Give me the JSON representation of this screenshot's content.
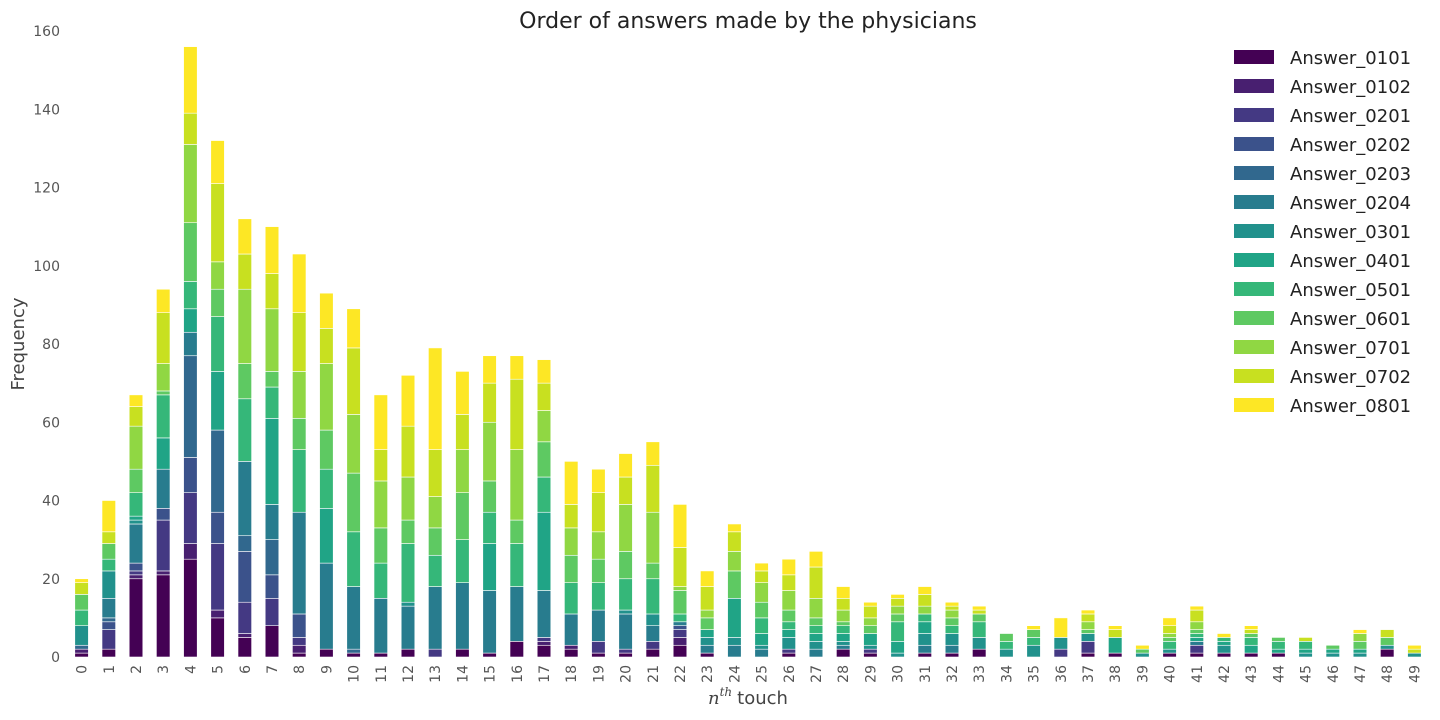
{
  "chart_data": {
    "type": "bar",
    "stacked": true,
    "title": "Order of answers made by the physicians",
    "xlabel": "touch",
    "xlabel_prefix": "n",
    "xlabel_superscript": "th",
    "ylabel": "Frequency",
    "ylim": [
      0,
      160
    ],
    "yticks": [
      0,
      20,
      40,
      60,
      80,
      100,
      120,
      140,
      160
    ],
    "grid": false,
    "legend_position": "top-right",
    "categories": [
      "0",
      "1",
      "2",
      "3",
      "4",
      "5",
      "6",
      "7",
      "8",
      "9",
      "10",
      "11",
      "12",
      "13",
      "14",
      "15",
      "16",
      "17",
      "18",
      "19",
      "20",
      "21",
      "22",
      "23",
      "24",
      "25",
      "26",
      "27",
      "28",
      "29",
      "30",
      "31",
      "32",
      "33",
      "34",
      "35",
      "36",
      "37",
      "38",
      "39",
      "40",
      "41",
      "42",
      "43",
      "44",
      "45",
      "46",
      "47",
      "48",
      "49"
    ],
    "colors": [
      "#440154",
      "#481f70",
      "#443983",
      "#3b528b",
      "#31688e",
      "#287c8e",
      "#21918c",
      "#20a486",
      "#35b779",
      "#5ec962",
      "#90d743",
      "#c8e020",
      "#fde725"
    ],
    "series": [
      {
        "name": "Answer_0101",
        "values": [
          1,
          2,
          20,
          21,
          25,
          10,
          5,
          8,
          1,
          2,
          1,
          1,
          2,
          0,
          2,
          1,
          4,
          3,
          2,
          1,
          1,
          2,
          3,
          1,
          0,
          0,
          1,
          0,
          2,
          1,
          0,
          1,
          1,
          2,
          0,
          0,
          0,
          1,
          1,
          0,
          1,
          1,
          1,
          1,
          1,
          0,
          0,
          0,
          2,
          0
        ]
      },
      {
        "name": "Answer_0102",
        "values": [
          1,
          0,
          1,
          1,
          4,
          2,
          1,
          0,
          2,
          0,
          0,
          0,
          0,
          0,
          0,
          0,
          0,
          1,
          1,
          0,
          0,
          0,
          2,
          0,
          0,
          0,
          0,
          0,
          0,
          0,
          0,
          0,
          0,
          0,
          0,
          0,
          0,
          0,
          0,
          0,
          0,
          0,
          0,
          0,
          0,
          0,
          0,
          0,
          0,
          0
        ]
      },
      {
        "name": "Answer_0201",
        "values": [
          0,
          5,
          1,
          13,
          13,
          17,
          8,
          7,
          2,
          0,
          0,
          0,
          0,
          2,
          0,
          0,
          0,
          1,
          0,
          3,
          1,
          2,
          2,
          0,
          0,
          0,
          1,
          0,
          0,
          1,
          0,
          0,
          0,
          0,
          0,
          0,
          2,
          3,
          0,
          0,
          0,
          2,
          0,
          0,
          0,
          0,
          0,
          0,
          0,
          0
        ]
      },
      {
        "name": "Answer_0202",
        "values": [
          0,
          2,
          2,
          3,
          9,
          8,
          13,
          6,
          6,
          0,
          0,
          0,
          0,
          0,
          0,
          0,
          0,
          0,
          0,
          0,
          0,
          0,
          1,
          0,
          0,
          0,
          0,
          0,
          0,
          0,
          0,
          0,
          0,
          0,
          0,
          0,
          0,
          0,
          0,
          0,
          0,
          0,
          0,
          0,
          0,
          0,
          0,
          0,
          0,
          0
        ]
      },
      {
        "name": "Answer_0203",
        "values": [
          1,
          1,
          0,
          0,
          26,
          21,
          4,
          9,
          0,
          0,
          1,
          0,
          0,
          0,
          0,
          0,
          0,
          0,
          0,
          0,
          0,
          0,
          0,
          0,
          0,
          0,
          0,
          0,
          0,
          0,
          0,
          0,
          0,
          0,
          0,
          0,
          0,
          0,
          0,
          0,
          0,
          0,
          0,
          0,
          0,
          0,
          0,
          0,
          0,
          0
        ]
      },
      {
        "name": "Answer_0204",
        "values": [
          0,
          5,
          10,
          10,
          6,
          0,
          19,
          9,
          26,
          22,
          16,
          14,
          11,
          16,
          17,
          16,
          14,
          12,
          8,
          8,
          9,
          4,
          1,
          2,
          3,
          2,
          0,
          2,
          1,
          0,
          0,
          2,
          2,
          0,
          0,
          0,
          0,
          0,
          0,
          0,
          0,
          1,
          0,
          0,
          0,
          0,
          0,
          0,
          0,
          0
        ]
      },
      {
        "name": "Answer_0301",
        "values": [
          5,
          7,
          1,
          0,
          0,
          0,
          0,
          0,
          0,
          0,
          0,
          0,
          1,
          0,
          0,
          0,
          0,
          0,
          0,
          0,
          1,
          3,
          0,
          2,
          2,
          1,
          3,
          2,
          1,
          1,
          1,
          3,
          3,
          3,
          2,
          3,
          3,
          2,
          0,
          1,
          1,
          0,
          2,
          0,
          0,
          1,
          1,
          1,
          1,
          1
        ]
      },
      {
        "name": "Answer_0401",
        "values": [
          0,
          0,
          1,
          8,
          6,
          15,
          0,
          22,
          0,
          14,
          0,
          0,
          0,
          0,
          0,
          12,
          0,
          20,
          0,
          0,
          0,
          0,
          0,
          2,
          10,
          3,
          2,
          2,
          2,
          3,
          3,
          3,
          0,
          0,
          0,
          0,
          0,
          0,
          4,
          0,
          0,
          1,
          1,
          2,
          1,
          1,
          1,
          1,
          0,
          0
        ]
      },
      {
        "name": "Answer_0501",
        "values": [
          4,
          3,
          6,
          11,
          7,
          14,
          16,
          8,
          16,
          10,
          14,
          9,
          15,
          8,
          11,
          8,
          11,
          9,
          8,
          7,
          8,
          9,
          2,
          0,
          0,
          4,
          2,
          2,
          2,
          0,
          5,
          2,
          2,
          4,
          2,
          2,
          0,
          0,
          0,
          0,
          2,
          1,
          1,
          2,
          2,
          2,
          0,
          0,
          0,
          0
        ]
      },
      {
        "name": "Answer_0601",
        "values": [
          4,
          4,
          6,
          1,
          15,
          7,
          9,
          4,
          8,
          10,
          15,
          9,
          6,
          7,
          12,
          8,
          6,
          9,
          7,
          6,
          7,
          4,
          6,
          3,
          7,
          4,
          3,
          2,
          1,
          2,
          2,
          0,
          2,
          2,
          2,
          2,
          0,
          1,
          0,
          1,
          1,
          1,
          0,
          1,
          1,
          0,
          1,
          2,
          2,
          0
        ]
      },
      {
        "name": "Answer_0701",
        "values": [
          0,
          0,
          11,
          7,
          20,
          7,
          19,
          16,
          12,
          17,
          15,
          12,
          11,
          8,
          11,
          15,
          18,
          8,
          7,
          7,
          12,
          13,
          1,
          2,
          5,
          5,
          5,
          5,
          3,
          2,
          2,
          2,
          2,
          0,
          0,
          0,
          0,
          2,
          0,
          0,
          1,
          2,
          0,
          0,
          0,
          0,
          0,
          2,
          0,
          0
        ]
      },
      {
        "name": "Answer_0702",
        "values": [
          3,
          3,
          5,
          13,
          8,
          20,
          9,
          9,
          15,
          9,
          17,
          8,
          13,
          12,
          9,
          10,
          18,
          7,
          6,
          10,
          7,
          12,
          10,
          6,
          5,
          3,
          4,
          8,
          3,
          3,
          2,
          3,
          1,
          1,
          0,
          0,
          0,
          2,
          2,
          0,
          2,
          3,
          0,
          1,
          0,
          1,
          0,
          0,
          2,
          1
        ]
      },
      {
        "name": "Answer_0801",
        "values": [
          1,
          8,
          3,
          6,
          17,
          11,
          9,
          12,
          15,
          9,
          10,
          14,
          13,
          26,
          11,
          7,
          6,
          6,
          11,
          6,
          6,
          6,
          11,
          4,
          2,
          2,
          4,
          4,
          3,
          1,
          1,
          2,
          1,
          1,
          0,
          1,
          5,
          1,
          1,
          1,
          2,
          1,
          1,
          1,
          0,
          0,
          0,
          1,
          0,
          1
        ]
      }
    ]
  }
}
